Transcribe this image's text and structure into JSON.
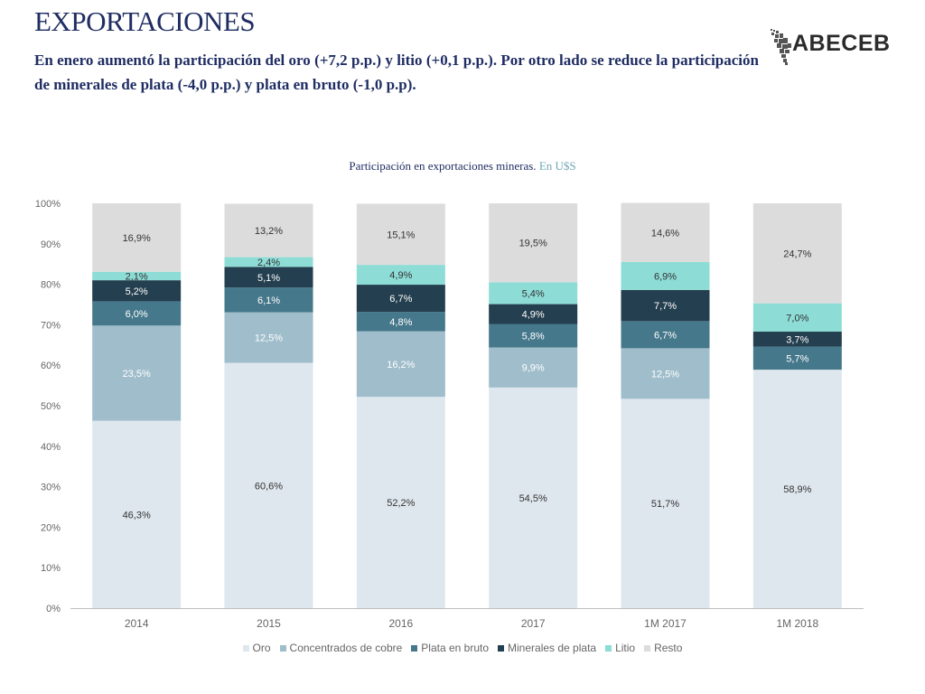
{
  "header": {
    "title": "EXPORTACIONES",
    "subtitle": "En enero aumentó la participación del oro (+7,2 p.p.) y litio (+0,1 p.p.). Por otro lado se reduce la participación de minerales de plata (-4,0 p.p.) y plata en bruto (-1,0 p.p).",
    "logo_text": "ABECEB"
  },
  "chart_title": {
    "main": "Participación en exportaciones mineras.",
    "unit": "En U$S"
  },
  "chart_data": {
    "type": "bar",
    "stacked": true,
    "categories": [
      "2014",
      "2015",
      "2016",
      "2017",
      "1M 2017",
      "1M 2018"
    ],
    "ylim": [
      0,
      100
    ],
    "y_ticks": [
      "0%",
      "10%",
      "20%",
      "30%",
      "40%",
      "50%",
      "60%",
      "70%",
      "80%",
      "90%",
      "100%"
    ],
    "legend_position": "bottom",
    "series": [
      {
        "name": "Oro",
        "color": "#dfe7ee",
        "label_color": "#333333",
        "values": [
          46.3,
          60.6,
          52.2,
          54.5,
          51.7,
          58.9
        ],
        "labels": [
          "46,3%",
          "60,6%",
          "52,2%",
          "54,5%",
          "51,7%",
          "58,9%"
        ]
      },
      {
        "name": "Concentrados de cobre",
        "color": "#9fbdcb",
        "label_color": "#ffffff",
        "values": [
          23.5,
          12.5,
          16.2,
          9.9,
          12.5,
          0
        ],
        "labels": [
          "23,5%",
          "12,5%",
          "16,2%",
          "9,9%",
          "12,5%",
          ""
        ]
      },
      {
        "name": "Plata en bruto",
        "color": "#46788b",
        "label_color": "#ffffff",
        "values": [
          6.0,
          6.1,
          4.8,
          5.8,
          6.7,
          5.7
        ],
        "labels": [
          "6,0%",
          "6,1%",
          "4,8%",
          "5,8%",
          "6,7%",
          "5,7%"
        ]
      },
      {
        "name": "Minerales de plata",
        "color": "#243f4f",
        "label_color": "#ffffff",
        "values": [
          5.2,
          5.1,
          6.7,
          4.9,
          7.7,
          3.7
        ],
        "labels": [
          "5,2%",
          "5,1%",
          "6,7%",
          "4,9%",
          "7,7%",
          "3,7%"
        ]
      },
      {
        "name": "Litio",
        "color": "#8ddcd6",
        "label_color": "#333333",
        "values": [
          2.1,
          2.4,
          4.9,
          5.4,
          6.9,
          7.0
        ],
        "labels": [
          "2,1%",
          "2,4%",
          "4,9%",
          "5,4%",
          "6,9%",
          "7,0%"
        ]
      },
      {
        "name": "Resto",
        "color": "#dcdcdc",
        "label_color": "#333333",
        "values": [
          16.9,
          13.2,
          15.1,
          19.5,
          14.6,
          24.7
        ],
        "labels": [
          "16,9%",
          "13,2%",
          "15,1%",
          "19,5%",
          "14,6%",
          "24,7%"
        ]
      }
    ]
  }
}
